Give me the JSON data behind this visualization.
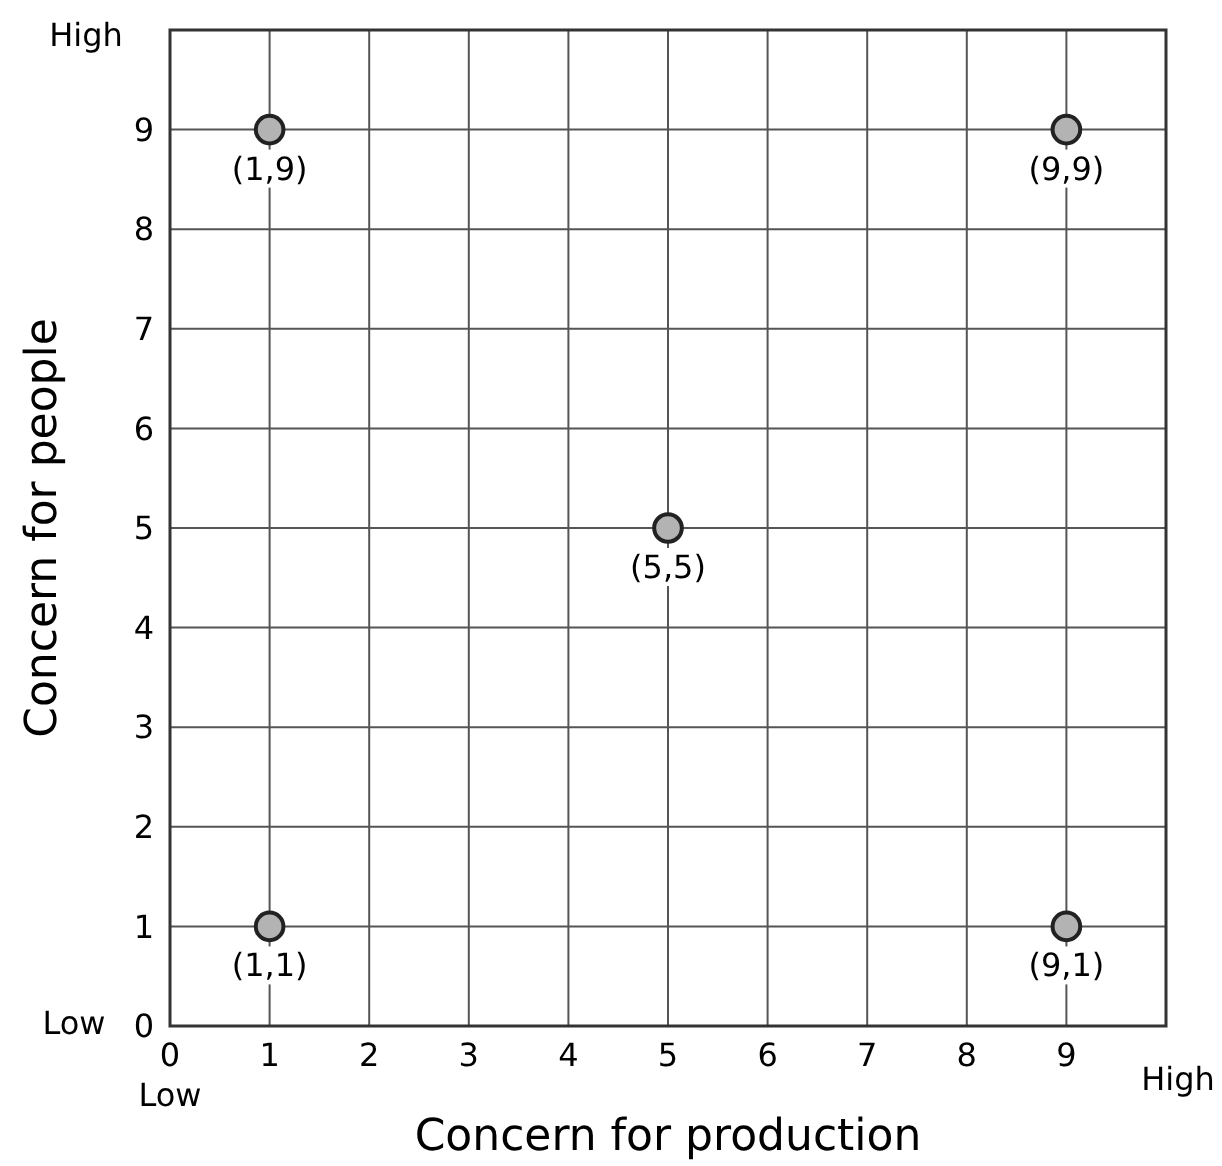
{
  "chart_data": {
    "type": "scatter",
    "xlabel": "Concern for production",
    "ylabel": "Concern for people",
    "x": [
      1,
      9,
      5,
      1,
      9
    ],
    "values": [
      9,
      9,
      5,
      1,
      1
    ],
    "color": "#b3b3b3",
    "marker": "circle",
    "xlim": [
      0,
      10
    ],
    "ylim": [
      0,
      10
    ],
    "xticks": [
      0,
      1,
      2,
      3,
      4,
      5,
      6,
      7,
      8,
      9
    ],
    "yticks": [
      0,
      1,
      2,
      3,
      4,
      5,
      6,
      7,
      8,
      9
    ],
    "grid": true,
    "annotations": [
      "High",
      "Low",
      "Low",
      "High",
      {
        "text": "(1,9)",
        "x": 1,
        "y": 9
      },
      {
        "text": "(9,9)",
        "x": 9,
        "y": 9
      },
      {
        "text": "(5,5)",
        "x": 5,
        "y": 5
      },
      {
        "text": "(1,1)",
        "x": 1,
        "y": 1
      },
      {
        "text": "(9,1)",
        "x": 9,
        "y": 1
      }
    ]
  }
}
